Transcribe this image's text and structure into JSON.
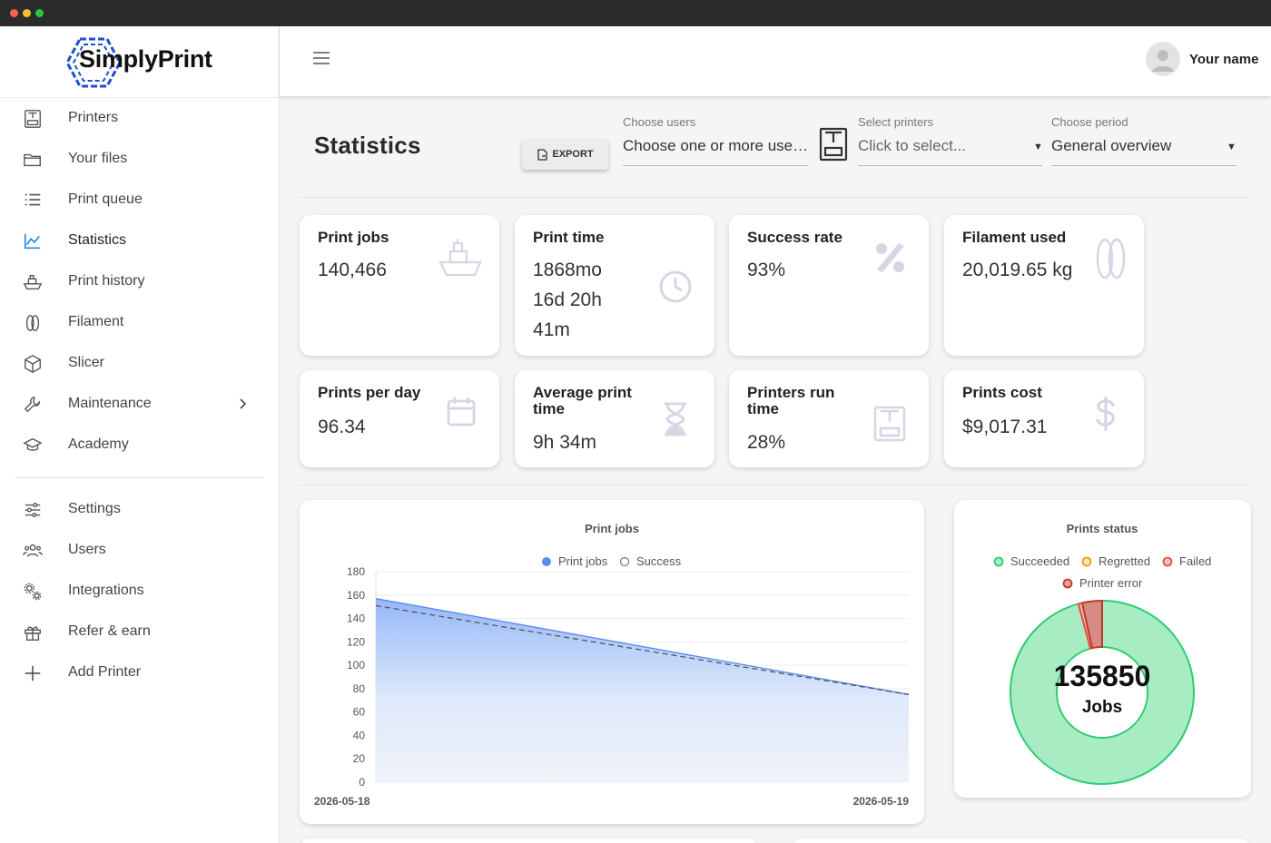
{
  "app": {
    "brand": "SimplyPrint",
    "brand_color": "#1f4fd1"
  },
  "sidebar": {
    "items": [
      {
        "label": "Printers",
        "icon": "printer-icon"
      },
      {
        "label": "Your files",
        "icon": "folder-icon"
      },
      {
        "label": "Print queue",
        "icon": "list-icon"
      },
      {
        "label": "Statistics",
        "icon": "chart-line-icon"
      },
      {
        "label": "Print history",
        "icon": "boat-icon"
      },
      {
        "label": "Filament",
        "icon": "filament-spool-icon"
      },
      {
        "label": "Slicer",
        "icon": "cube-icon"
      },
      {
        "label": "Maintenance",
        "icon": "wrench-icon"
      },
      {
        "label": "Academy",
        "icon": "graduation-cap-icon"
      },
      {
        "label": "Settings",
        "icon": "sliders-icon"
      },
      {
        "label": "Users",
        "icon": "users-icon"
      },
      {
        "label": "Integrations",
        "icon": "gears-icon"
      },
      {
        "label": "Refer & earn",
        "icon": "gift-icon"
      },
      {
        "label": "Add Printer",
        "icon": "plus-icon"
      }
    ]
  },
  "topbar": {
    "user_name": "Your name"
  },
  "header": {
    "title": "Statistics",
    "export_label": "EXPORT",
    "users_label": "Choose users",
    "users_value": "Choose one or more use…",
    "printers_label": "Select printers",
    "printers_value": "Click to select...",
    "period_label": "Choose period",
    "period_value": "General overview"
  },
  "stats": [
    {
      "title": "Print jobs",
      "value": "140,466",
      "icon": "boat-icon"
    },
    {
      "title": "Print time",
      "value": "1868mo 16d 20h 41m",
      "icon": "clock-icon"
    },
    {
      "title": "Success rate",
      "value": "93%",
      "icon": "percent-icon"
    },
    {
      "title": "Filament used",
      "value": "20,019.65 kg",
      "icon": "filament-spool-icon"
    },
    {
      "title": "Prints per day",
      "value": "96.34",
      "icon": "calendar-icon"
    },
    {
      "title": "Average print time",
      "value": "9h 34m",
      "icon": "hourglass-icon"
    },
    {
      "title": "Printers run time",
      "value": "28%",
      "icon": "printer-icon"
    },
    {
      "title": "Prints cost",
      "value": "$9,017.31",
      "icon": "dollar-icon"
    }
  ],
  "chart_data": [
    {
      "type": "area",
      "title": "Print jobs",
      "x": [
        "2026-05-18",
        "2026-05-19"
      ],
      "series": [
        {
          "name": "Print jobs",
          "values": [
            157,
            75
          ],
          "color": "#5b8def",
          "style": "solid-filled"
        },
        {
          "name": "Success",
          "values": [
            151,
            75
          ],
          "color": "#666666",
          "style": "dashed"
        }
      ],
      "ylim": [
        0,
        180
      ],
      "yticks": [
        "0",
        "20",
        "40",
        "60",
        "80",
        "100",
        "120",
        "140",
        "160",
        "180"
      ],
      "xticks": [
        "2026-05-18",
        "2026-05-19"
      ],
      "legend": "top",
      "grid": true
    },
    {
      "type": "pie",
      "title": "Prints status",
      "center_value": "135850",
      "center_label": "Jobs",
      "slices": [
        {
          "label": "Succeeded",
          "value": 130200,
          "color": "#2ecc71"
        },
        {
          "label": "Regretted",
          "value": 0,
          "color": "#f39c12"
        },
        {
          "label": "Failed",
          "value": 900,
          "color": "#e74c3c"
        },
        {
          "label": "Printer error",
          "value": 4750,
          "color": "#c0392b"
        }
      ],
      "legend": "top"
    }
  ]
}
